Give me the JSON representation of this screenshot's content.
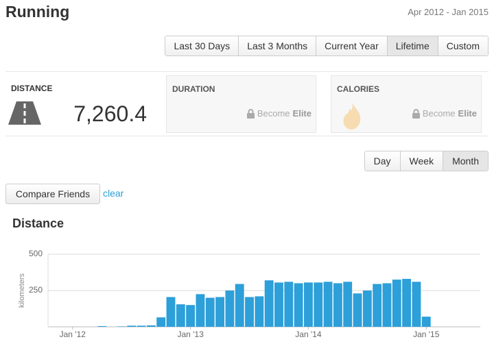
{
  "header": {
    "title": "Running",
    "date_range": "Apr 2012 - Jan 2015"
  },
  "range_tabs": {
    "items": [
      "Last 30 Days",
      "Last 3 Months",
      "Current Year",
      "Lifetime",
      "Custom"
    ],
    "selected": 3
  },
  "stats": {
    "distance": {
      "label": "DISTANCE",
      "value": "7,260.4"
    },
    "duration": {
      "label": "DURATION",
      "lock_text": "Become",
      "lock_strong": "Elite"
    },
    "calories": {
      "label": "CALORIES",
      "lock_text": "Become",
      "lock_strong": "Elite"
    }
  },
  "period_tabs": {
    "items": [
      "Day",
      "Week",
      "Month"
    ],
    "selected": 2
  },
  "compare_button": "Compare Friends",
  "clear_link": "clear",
  "chart_data": {
    "type": "bar",
    "title": "Distance",
    "y_label": "kilometers",
    "color": "#2d9fd9",
    "grid": true,
    "categories": [
      null,
      null,
      "Jan '12",
      null,
      null,
      null,
      null,
      null,
      null,
      null,
      null,
      null,
      null,
      null,
      "Jan '13",
      null,
      null,
      null,
      null,
      null,
      null,
      null,
      null,
      null,
      null,
      null,
      "Jan '14",
      null,
      null,
      null,
      null,
      null,
      null,
      null,
      null,
      null,
      null,
      null,
      "Jan '15",
      null,
      null,
      null,
      null,
      null
    ],
    "values": [
      0,
      0,
      0,
      0,
      0,
      5,
      0,
      3,
      8,
      8,
      10,
      65,
      205,
      155,
      150,
      225,
      200,
      205,
      250,
      295,
      205,
      210,
      320,
      305,
      310,
      300,
      305,
      305,
      310,
      300,
      310,
      230,
      250,
      295,
      300,
      325,
      330,
      310,
      70,
      0,
      0,
      0,
      0,
      0
    ],
    "ylim": [
      0,
      500
    ],
    "yticks": [
      250,
      500
    ]
  }
}
